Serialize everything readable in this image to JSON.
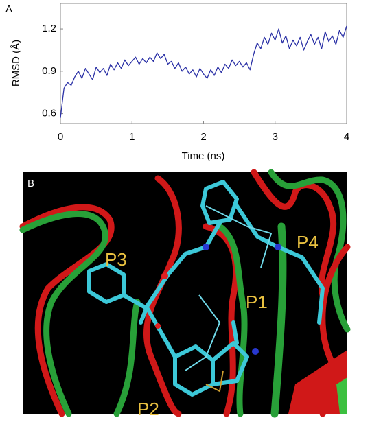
{
  "panel_a_label": "A",
  "chart_data": {
    "type": "line",
    "xlabel": "Time (ns)",
    "ylabel": "RMSD (Å)",
    "x": [
      0,
      0.05,
      0.1,
      0.15,
      0.2,
      0.25,
      0.3,
      0.35,
      0.4,
      0.45,
      0.5,
      0.55,
      0.6,
      0.65,
      0.7,
      0.75,
      0.8,
      0.85,
      0.9,
      0.95,
      1,
      1.05,
      1.1,
      1.15,
      1.2,
      1.25,
      1.3,
      1.35,
      1.4,
      1.45,
      1.5,
      1.55,
      1.6,
      1.65,
      1.7,
      1.75,
      1.8,
      1.85,
      1.9,
      1.95,
      2,
      2.05,
      2.1,
      2.15,
      2.2,
      2.25,
      2.3,
      2.35,
      2.4,
      2.45,
      2.5,
      2.55,
      2.6,
      2.65,
      2.7,
      2.75,
      2.8,
      2.85,
      2.9,
      2.95,
      3,
      3.05,
      3.1,
      3.15,
      3.2,
      3.25,
      3.3,
      3.35,
      3.4,
      3.45,
      3.5,
      3.55,
      3.6,
      3.65,
      3.7,
      3.75,
      3.8,
      3.85,
      3.9,
      3.95,
      4
    ],
    "series": [
      {
        "color": "#2b31a6",
        "values": [
          0.57,
          0.78,
          0.82,
          0.8,
          0.86,
          0.9,
          0.85,
          0.92,
          0.88,
          0.84,
          0.93,
          0.89,
          0.92,
          0.87,
          0.95,
          0.91,
          0.96,
          0.92,
          0.98,
          0.94,
          0.97,
          1.0,
          0.95,
          0.99,
          0.96,
          1.0,
          0.97,
          1.03,
          0.99,
          1.02,
          0.95,
          0.97,
          0.92,
          0.96,
          0.9,
          0.93,
          0.88,
          0.91,
          0.86,
          0.92,
          0.88,
          0.85,
          0.91,
          0.87,
          0.93,
          0.89,
          0.95,
          0.92,
          0.98,
          0.94,
          0.97,
          0.93,
          0.96,
          0.91,
          1.02,
          1.1,
          1.06,
          1.14,
          1.09,
          1.17,
          1.12,
          1.2,
          1.1,
          1.15,
          1.06,
          1.12,
          1.08,
          1.14,
          1.05,
          1.11,
          1.16,
          1.09,
          1.14,
          1.06,
          1.18,
          1.11,
          1.15,
          1.09,
          1.19,
          1.14,
          1.22
        ]
      }
    ],
    "xlim": [
      0,
      4
    ],
    "xticks": [
      0,
      1,
      2,
      3,
      4
    ],
    "ylim": [
      0.53,
      1.38
    ],
    "yticks": [
      0.6,
      0.9,
      1.2
    ],
    "grid": false
  },
  "panel_b": {
    "label": "B",
    "annotations": [
      "P1",
      "P2",
      "P3",
      "P4"
    ]
  }
}
